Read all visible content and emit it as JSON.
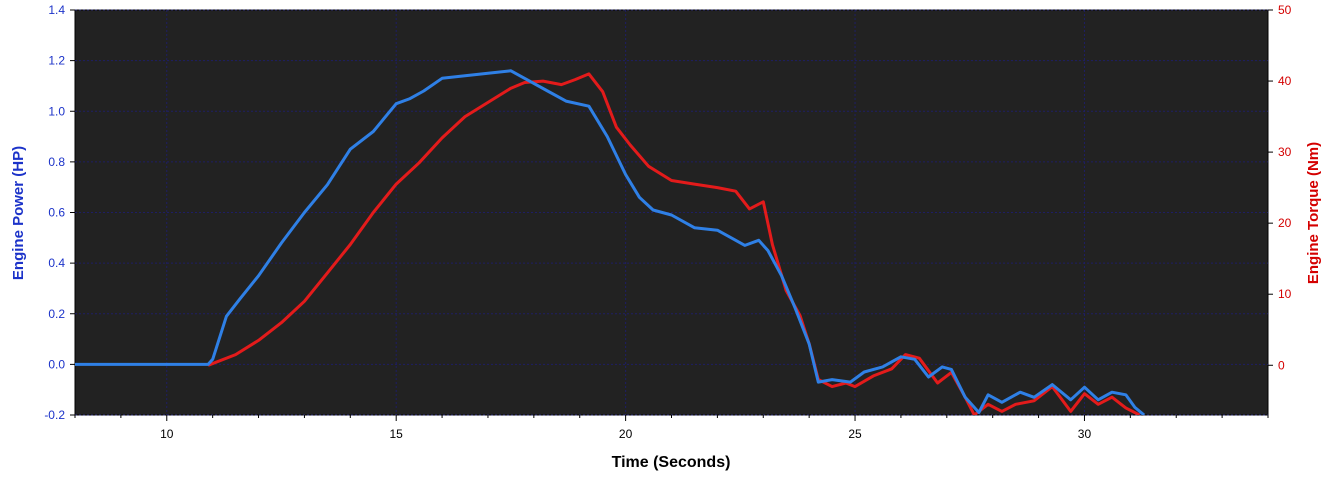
{
  "chart_data": {
    "type": "line",
    "xlabel": "Time (Seconds)",
    "ylabel": "Engine Power (HP)",
    "y2label": "Engine Torque (Nm)",
    "xlim": [
      8,
      34
    ],
    "ylim": [
      -0.2,
      1.4
    ],
    "y2lim": [
      -7,
      50
    ],
    "x_ticks": [
      10,
      15,
      20,
      25,
      30
    ],
    "y_ticks": [
      -0.2,
      0.0,
      0.2,
      0.4,
      0.6,
      0.8,
      1.0,
      1.2,
      1.4
    ],
    "y2_ticks": [
      0,
      10,
      20,
      30,
      40,
      50
    ],
    "grid": true,
    "legend": "none",
    "colors": {
      "background": "#222222",
      "grid": "#1e1e64",
      "power": "#2f80e6",
      "torque": "#e31b1b",
      "left_axis": "#1c33c9",
      "right_axis": "#d40000"
    },
    "series": [
      {
        "axis": "left",
        "x": [
          8,
          10.9,
          11.0,
          11.3,
          11.6,
          12.0,
          12.5,
          13.0,
          13.5,
          14.0,
          14.5,
          15.0,
          15.3,
          15.6,
          16.0,
          16.5,
          17.0,
          17.5,
          17.9,
          18.3,
          18.7,
          19.2,
          19.6,
          20.0,
          20.3,
          20.6,
          21.0,
          21.5,
          22.0,
          22.3,
          22.6,
          22.9,
          23.1,
          23.4,
          23.7,
          24.0,
          24.2,
          24.5,
          24.9,
          25.2,
          25.6,
          26.0,
          26.3,
          26.6,
          26.9,
          27.1,
          27.4,
          27.7,
          27.9,
          28.2,
          28.6,
          28.9,
          29.3,
          29.7,
          30.0,
          30.3,
          30.6,
          30.9,
          31.1,
          31.3
        ],
        "values": [
          0.0,
          0.0,
          0.02,
          0.19,
          0.26,
          0.35,
          0.48,
          0.6,
          0.71,
          0.85,
          0.92,
          1.03,
          1.05,
          1.08,
          1.13,
          1.14,
          1.15,
          1.16,
          1.12,
          1.08,
          1.04,
          1.02,
          0.9,
          0.75,
          0.66,
          0.61,
          0.59,
          0.54,
          0.53,
          0.5,
          0.47,
          0.49,
          0.45,
          0.35,
          0.22,
          0.08,
          -0.07,
          -0.06,
          -0.07,
          -0.03,
          -0.01,
          0.03,
          0.02,
          -0.05,
          -0.01,
          -0.02,
          -0.13,
          -0.19,
          -0.12,
          -0.15,
          -0.11,
          -0.13,
          -0.08,
          -0.14,
          -0.09,
          -0.14,
          -0.11,
          -0.12,
          -0.17,
          -0.2
        ]
      },
      {
        "axis": "right",
        "x": [
          10.9,
          11.5,
          12.0,
          12.5,
          13.0,
          13.5,
          14.0,
          14.5,
          15.0,
          15.5,
          16.0,
          16.5,
          17.0,
          17.5,
          17.8,
          18.2,
          18.6,
          18.9,
          19.2,
          19.5,
          19.8,
          20.1,
          20.5,
          21.0,
          21.5,
          22.0,
          22.4,
          22.7,
          23.0,
          23.2,
          23.5,
          23.8,
          24.0,
          24.2,
          24.5,
          24.8,
          25.0,
          25.4,
          25.8,
          26.1,
          26.4,
          26.8,
          27.1,
          27.4,
          27.6,
          27.9,
          28.2,
          28.5,
          28.9,
          29.3,
          29.7,
          30.0,
          30.3,
          30.6,
          30.9,
          31.2
        ],
        "values": [
          0.0,
          1.5,
          3.5,
          6.0,
          9.0,
          13.0,
          17.0,
          21.5,
          25.5,
          28.5,
          32.0,
          35.0,
          37.0,
          39.0,
          39.8,
          40.0,
          39.5,
          40.2,
          41.0,
          38.5,
          33.5,
          31.0,
          28.0,
          26.0,
          25.5,
          25.0,
          24.5,
          22.0,
          23.0,
          17.0,
          10.5,
          7.0,
          3.0,
          -2.0,
          -3.0,
          -2.5,
          -3.0,
          -1.5,
          -0.5,
          1.5,
          1.0,
          -2.5,
          -1.0,
          -4.5,
          -7.0,
          -5.5,
          -6.5,
          -5.5,
          -5.0,
          -3.0,
          -6.5,
          -4.0,
          -5.5,
          -4.5,
          -6.0,
          -7.0
        ]
      }
    ]
  }
}
